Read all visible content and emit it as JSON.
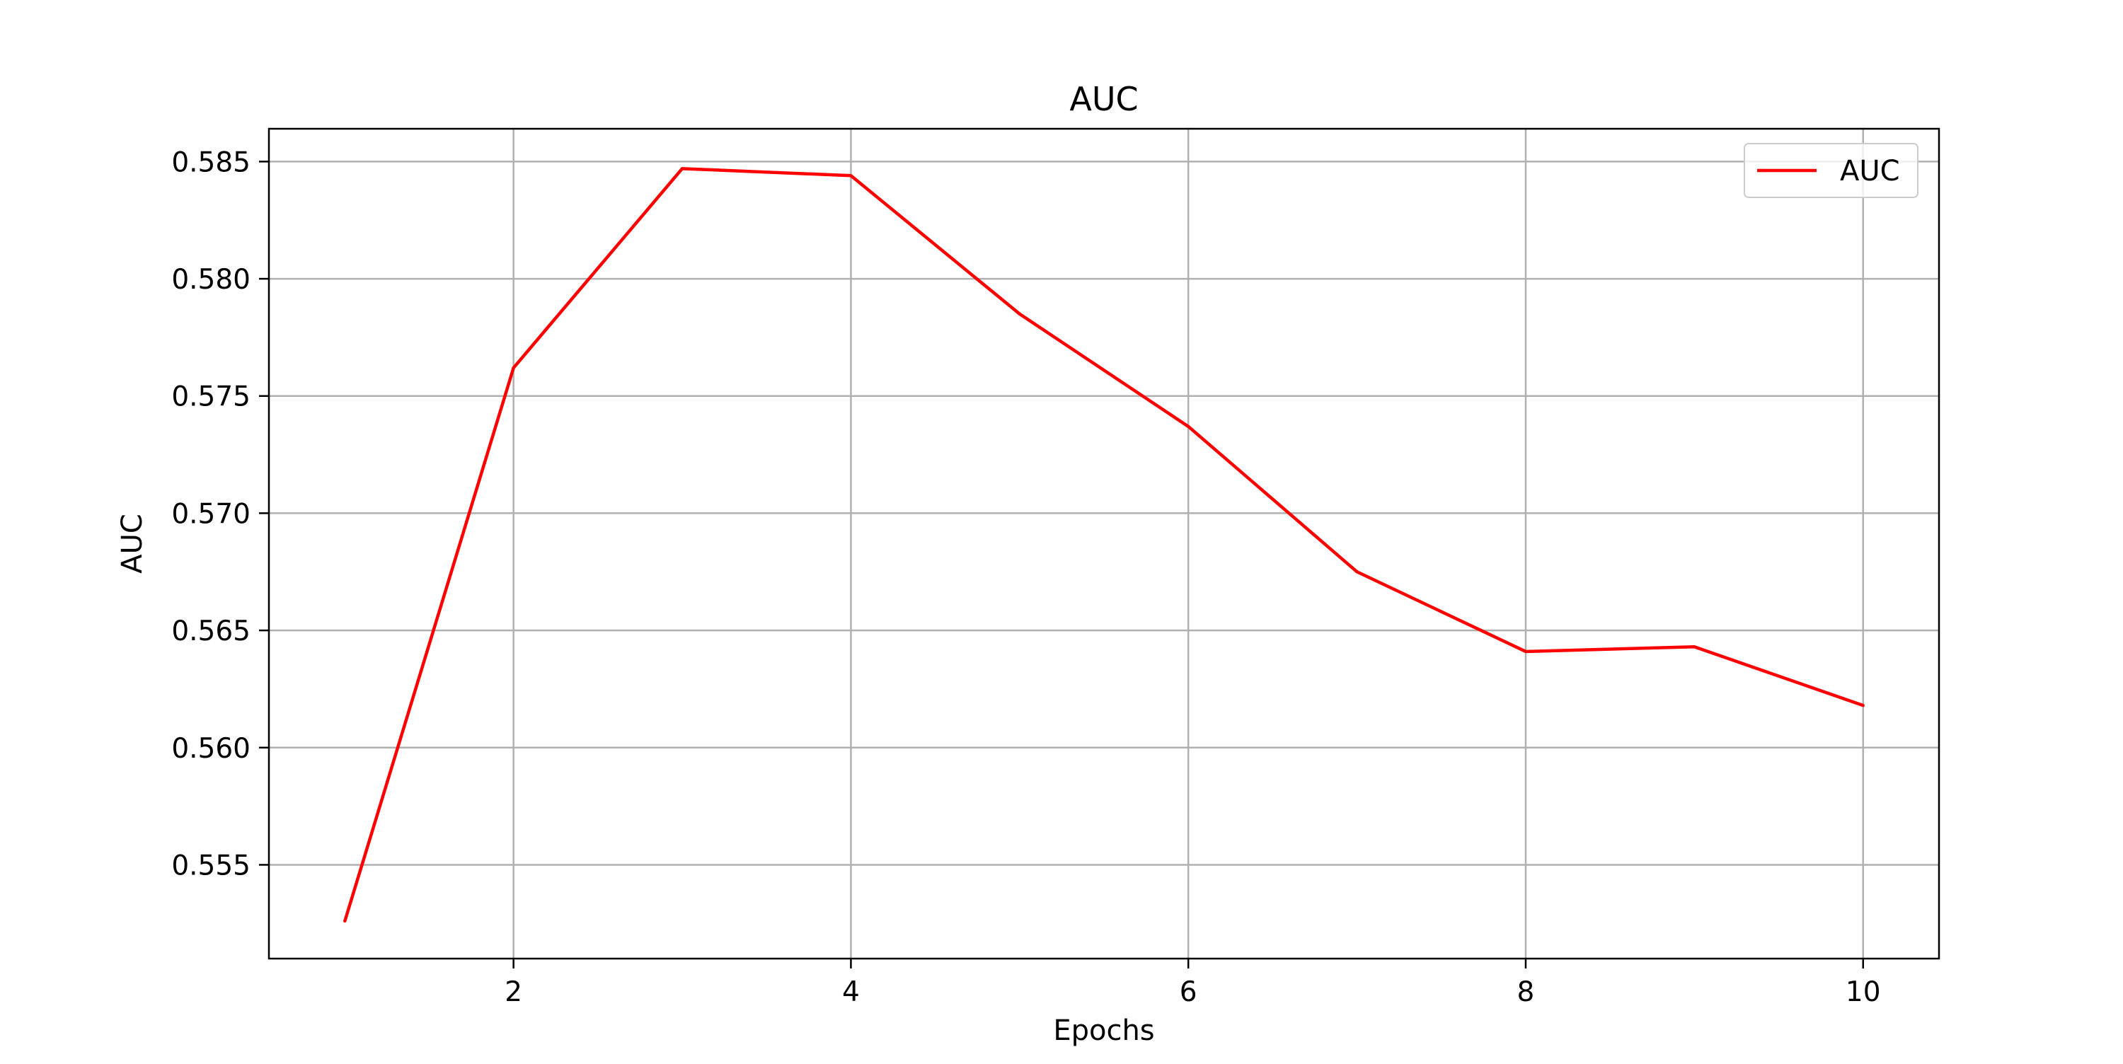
{
  "chart_data": {
    "type": "line",
    "title": "AUC",
    "xlabel": "Epochs",
    "ylabel": "AUC",
    "x": [
      1,
      2,
      3,
      4,
      5,
      6,
      7,
      8,
      9,
      10
    ],
    "series": [
      {
        "name": "AUC",
        "color": "#ff0000",
        "values": [
          0.5526,
          0.5762,
          0.5847,
          0.5844,
          0.5785,
          0.5737,
          0.5675,
          0.5641,
          0.5643,
          0.5618
        ]
      }
    ],
    "xlim": [
      0.55,
      10.45
    ],
    "ylim": [
      0.551,
      0.5864
    ],
    "xticks": [
      2,
      4,
      6,
      8,
      10
    ],
    "xtick_labels": [
      "2",
      "4",
      "6",
      "8",
      "10"
    ],
    "yticks": [
      0.555,
      0.56,
      0.565,
      0.57,
      0.575,
      0.58,
      0.585
    ],
    "ytick_labels": [
      "0.555",
      "0.560",
      "0.565",
      "0.570",
      "0.575",
      "0.580",
      "0.585"
    ],
    "grid": true,
    "grid_color": "#b0b0b0",
    "legend_position": "top-right"
  }
}
